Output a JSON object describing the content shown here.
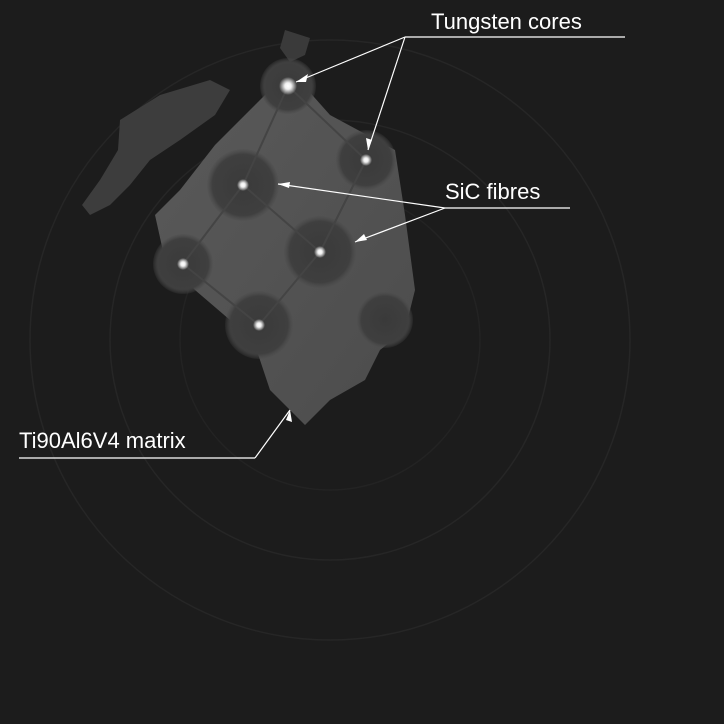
{
  "annotations": {
    "tungsten_cores": "Tungsten cores",
    "sic_fibres": "SiC fibres",
    "matrix": "Ti90Al6V4 matrix"
  },
  "colors": {
    "background": "#1c1c1c",
    "sample": "#555555",
    "annotation": "#ffffff"
  }
}
